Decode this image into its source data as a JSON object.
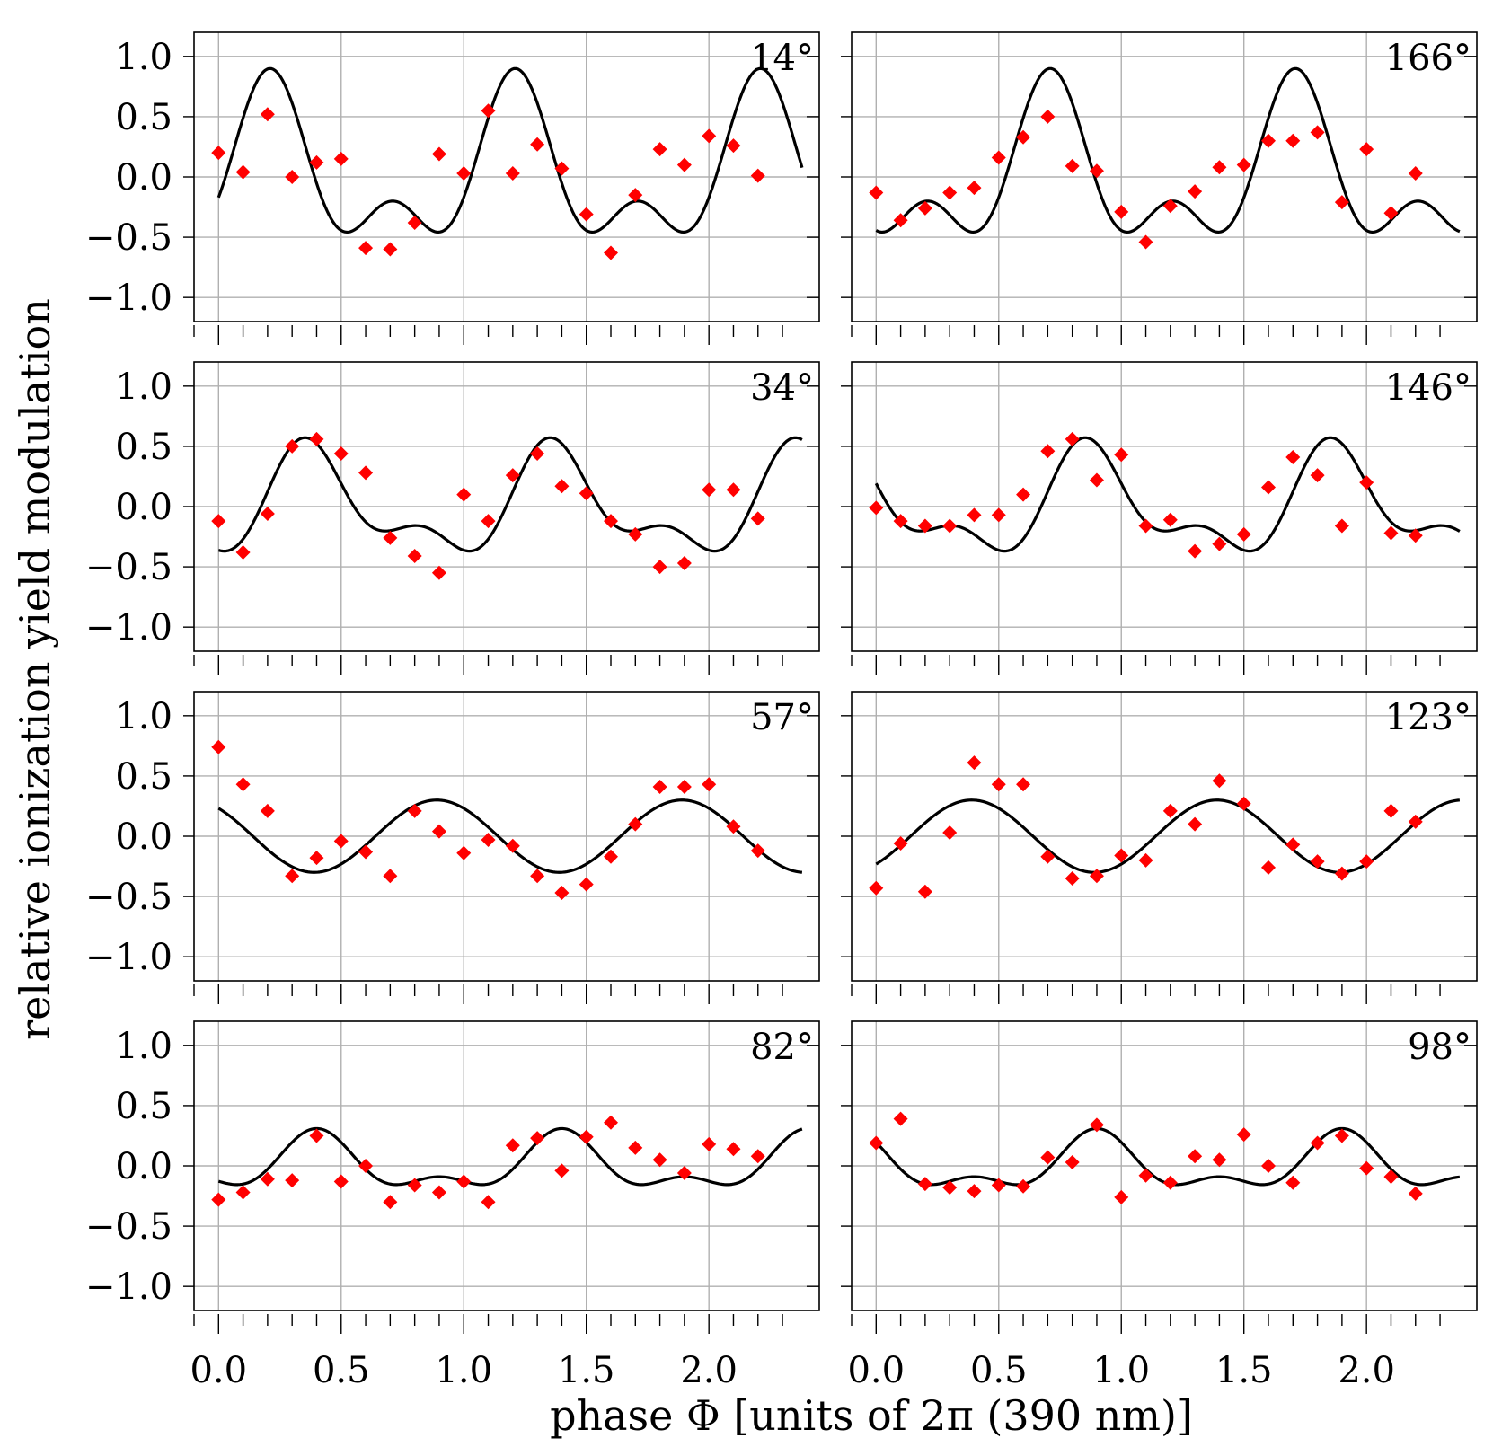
{
  "chart_data": {
    "type": "scatter",
    "layout": "4x2 grid of panels",
    "xlabel": "phase Φ [units of 2π (390 nm)]",
    "ylabel": "relative ionization yield modulation",
    "xlim": [
      -0.1,
      2.45
    ],
    "ylim": [
      -1.2,
      1.2
    ],
    "xticks": [
      "0.0",
      "0.5",
      "1.0",
      "1.5",
      "2.0"
    ],
    "yticks": [
      "1.0",
      "0.5",
      "0.0",
      "−0.5",
      "−1.0"
    ],
    "x": [
      0.0,
      0.1,
      0.2,
      0.3,
      0.4,
      0.5,
      0.6,
      0.7,
      0.8,
      0.9,
      1.0,
      1.1,
      1.2,
      1.3,
      1.4,
      1.5,
      1.6,
      1.7,
      1.8,
      1.9,
      2.0,
      2.1,
      2.2
    ],
    "panels": [
      {
        "angle": "14°",
        "fit": {
          "model": "two-harmonic",
          "a1": 0.55,
          "a2": 0.35,
          "x1": 0.21,
          "x2": 0.21,
          "fit_x": [
            0.0,
            2.38
          ]
        },
        "points": [
          0.2,
          0.04,
          0.52,
          0.0,
          0.12,
          0.15,
          -0.59,
          -0.6,
          -0.38,
          0.19,
          0.03,
          0.55,
          0.03,
          0.27,
          0.07,
          -0.31,
          -0.63,
          -0.15,
          0.23,
          0.1,
          0.34,
          0.26,
          0.01
        ]
      },
      {
        "angle": "166°",
        "fit": {
          "model": "two-harmonic",
          "a1": 0.55,
          "a2": 0.35,
          "x1": 0.71,
          "x2": 0.71,
          "fit_x": [
            0.0,
            2.38
          ]
        },
        "points": [
          -0.13,
          -0.36,
          -0.26,
          -0.13,
          -0.09,
          0.16,
          0.33,
          0.5,
          0.09,
          0.05,
          -0.29,
          -0.54,
          -0.24,
          -0.12,
          0.08,
          0.1,
          0.3,
          0.3,
          0.37,
          -0.21,
          0.23,
          -0.3,
          0.03
        ]
      },
      {
        "angle": "34°",
        "fit": {
          "model": "two-harmonic",
          "a1": 0.38,
          "a2": 0.2,
          "x1": 0.38,
          "x2": 0.34,
          "fit_x": [
            0.0,
            2.38
          ]
        },
        "points": [
          -0.12,
          -0.38,
          -0.06,
          0.5,
          0.56,
          0.44,
          0.28,
          -0.26,
          -0.41,
          -0.55,
          0.1,
          -0.12,
          0.26,
          0.44,
          0.17,
          0.11,
          -0.12,
          -0.23,
          -0.5,
          -0.47,
          0.14,
          0.14,
          -0.1
        ]
      },
      {
        "angle": "146°",
        "fit": {
          "model": "two-harmonic",
          "a1": 0.38,
          "a2": 0.2,
          "x1": 0.88,
          "x2": 0.84,
          "fit_x": [
            0.0,
            2.38
          ]
        },
        "points": [
          -0.01,
          -0.12,
          -0.16,
          -0.16,
          -0.07,
          -0.07,
          0.1,
          0.46,
          0.56,
          0.22,
          0.43,
          -0.16,
          -0.11,
          -0.37,
          -0.31,
          -0.23,
          0.16,
          0.41,
          0.26,
          -0.16,
          0.2,
          -0.22,
          -0.24
        ]
      },
      {
        "angle": "57°",
        "fit": {
          "model": "two-harmonic",
          "a1": 0.3,
          "a2": 0.0,
          "x1": 0.89,
          "x2": 0.0,
          "fit_x": [
            0.0,
            2.38
          ]
        },
        "points": [
          0.74,
          0.43,
          0.21,
          -0.33,
          -0.18,
          -0.04,
          -0.13,
          -0.33,
          0.21,
          0.04,
          -0.14,
          -0.03,
          -0.08,
          -0.33,
          -0.47,
          -0.4,
          -0.17,
          0.1,
          0.41,
          0.41,
          0.43,
          0.08,
          -0.12
        ]
      },
      {
        "angle": "123°",
        "fit": {
          "model": "two-harmonic",
          "a1": 0.3,
          "a2": 0.0,
          "x1": 0.39,
          "x2": 0.0,
          "fit_x": [
            0.0,
            2.38
          ]
        },
        "points": [
          -0.43,
          -0.06,
          -0.46,
          0.03,
          0.61,
          0.43,
          0.43,
          -0.17,
          -0.35,
          -0.33,
          -0.16,
          -0.2,
          0.21,
          0.1,
          0.46,
          0.27,
          -0.26,
          -0.07,
          -0.21,
          -0.31,
          -0.21,
          0.21,
          0.12
        ]
      },
      {
        "angle": "82°",
        "fit": {
          "model": "two-harmonic",
          "a1": 0.2,
          "a2": 0.11,
          "x1": 0.4,
          "x2": 0.4,
          "fit_x": [
            0.0,
            2.38
          ]
        },
        "points": [
          -0.28,
          -0.22,
          -0.11,
          -0.12,
          0.25,
          -0.13,
          0.0,
          -0.3,
          -0.16,
          -0.22,
          -0.13,
          -0.3,
          0.17,
          0.23,
          -0.04,
          0.24,
          0.36,
          0.15,
          0.05,
          -0.06,
          0.18,
          0.14,
          0.08
        ]
      },
      {
        "angle": "98°",
        "fit": {
          "model": "two-harmonic",
          "a1": 0.2,
          "a2": 0.11,
          "x1": 0.9,
          "x2": 0.9,
          "fit_x": [
            0.0,
            2.38
          ]
        },
        "points": [
          0.19,
          0.39,
          -0.15,
          -0.18,
          -0.21,
          -0.16,
          -0.17,
          0.07,
          0.03,
          0.34,
          -0.26,
          -0.08,
          -0.14,
          0.08,
          0.05,
          0.26,
          0.0,
          -0.14,
          0.19,
          0.25,
          -0.02,
          -0.09,
          -0.23
        ]
      }
    ],
    "marker": "red diamond",
    "line": "black solid fit curve",
    "grid": true
  },
  "colors": {
    "points": "#ff0000",
    "fit": "#000000",
    "grid": "#b0b0b0",
    "frame": "#000000"
  }
}
